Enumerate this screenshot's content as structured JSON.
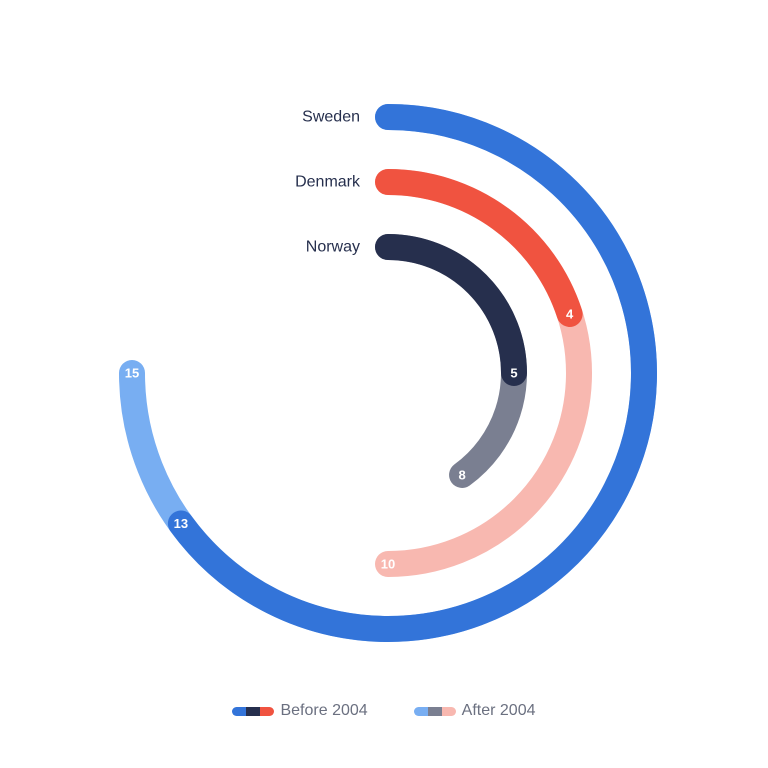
{
  "chart_data": {
    "type": "radial-bar",
    "title": "",
    "max_value": 20,
    "categories": [
      "Sweden",
      "Denmark",
      "Norway"
    ],
    "series": [
      {
        "name": "Before 2004",
        "values": [
          13,
          4,
          5
        ]
      },
      {
        "name": "After 2004",
        "values": [
          15,
          10,
          8
        ]
      }
    ],
    "colors": {
      "Sweden": {
        "before": "#3374d9",
        "after": "#78aef2"
      },
      "Denmark": {
        "before": "#f05340",
        "after": "#f8b8b0"
      },
      "Norway": {
        "before": "#262f4d",
        "after": "#7a7f91"
      }
    },
    "legend": [
      "Before 2004",
      "After 2004"
    ],
    "legend_position": "bottom"
  },
  "legend": {
    "before_label": "Before 2004",
    "after_label": "After 2004"
  }
}
